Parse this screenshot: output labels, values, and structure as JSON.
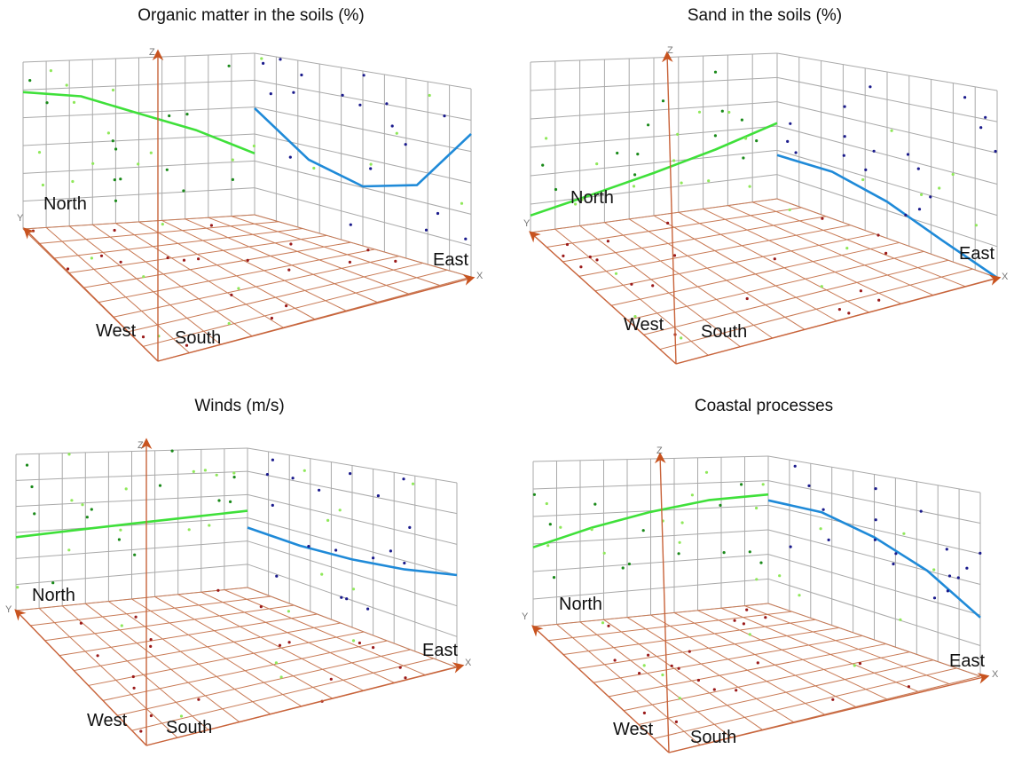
{
  "colors": {
    "wall_grid": "#a9a9a9",
    "floor_grid": "#c87a55",
    "axis": "#c8633a",
    "arrow": "#c8531f",
    "trend_left": "#3fe03a",
    "trend_right": "#1f8ad8",
    "points_left": [
      "#1a8a1a",
      "#8fe85a"
    ],
    "points_right": "#1a1a8c",
    "points_floor": "#9a1a1a"
  },
  "axes": {
    "x": "X",
    "y": "Y",
    "z": "Z"
  },
  "chart_data": [
    {
      "type": "scatter",
      "title": "Organic matter in the soils (%)",
      "directions": {
        "north": "North",
        "west": "West",
        "south": "South",
        "east": "East"
      },
      "series": [
        {
          "name": "",
          "plane": "X-Z",
          "kind": "trend",
          "x": [
            0,
            0.25,
            0.5,
            0.75,
            1
          ],
          "z": [
            0.82,
            0.78,
            0.66,
            0.54,
            0.38
          ]
        },
        {
          "name": "",
          "plane": "Y-Z",
          "kind": "trend",
          "y": [
            0,
            0.25,
            0.5,
            0.75,
            1
          ],
          "z": [
            0.66,
            0.42,
            0.34,
            0.42,
            0.76
          ]
        }
      ]
    },
    {
      "type": "scatter",
      "title": "Sand in the soils (%)",
      "directions": {
        "north": "North",
        "west": "West",
        "south": "South",
        "east": "East"
      },
      "series": [
        {
          "name": "",
          "plane": "X-Z",
          "kind": "trend",
          "x": [
            0,
            0.25,
            0.5,
            0.75,
            1
          ],
          "z": [
            0.1,
            0.18,
            0.27,
            0.38,
            0.52
          ]
        },
        {
          "name": "",
          "plane": "Y-Z",
          "kind": "trend",
          "y": [
            0,
            0.25,
            0.5,
            0.75,
            1
          ],
          "z": [
            0.3,
            0.3,
            0.22,
            0.1,
            0.0
          ]
        }
      ]
    },
    {
      "type": "scatter",
      "title": "Winds (m/s)",
      "directions": {
        "north": "North",
        "west": "West",
        "south": "South",
        "east": "East"
      },
      "series": [
        {
          "name": "",
          "plane": "X-Z",
          "kind": "trend",
          "x": [
            0,
            0.25,
            0.5,
            0.75,
            1
          ],
          "z": [
            0.47,
            0.49,
            0.51,
            0.53,
            0.55
          ]
        },
        {
          "name": "",
          "plane": "Y-Z",
          "kind": "trend",
          "y": [
            0,
            0.25,
            0.5,
            0.75,
            1
          ],
          "z": [
            0.43,
            0.41,
            0.42,
            0.45,
            0.5
          ]
        }
      ]
    },
    {
      "type": "scatter",
      "title": "Coastal processes",
      "directions": {
        "north": "North",
        "west": "West",
        "south": "South",
        "east": "East"
      },
      "series": [
        {
          "name": "",
          "plane": "X-Z",
          "kind": "trend",
          "x": [
            0,
            0.25,
            0.5,
            0.75,
            1
          ],
          "z": [
            0.48,
            0.58,
            0.66,
            0.72,
            0.74
          ]
        },
        {
          "name": "",
          "plane": "Y-Z",
          "kind": "trend",
          "y": [
            0,
            0.25,
            0.5,
            0.75,
            1
          ],
          "z": [
            0.7,
            0.7,
            0.62,
            0.5,
            0.32
          ]
        }
      ]
    }
  ]
}
